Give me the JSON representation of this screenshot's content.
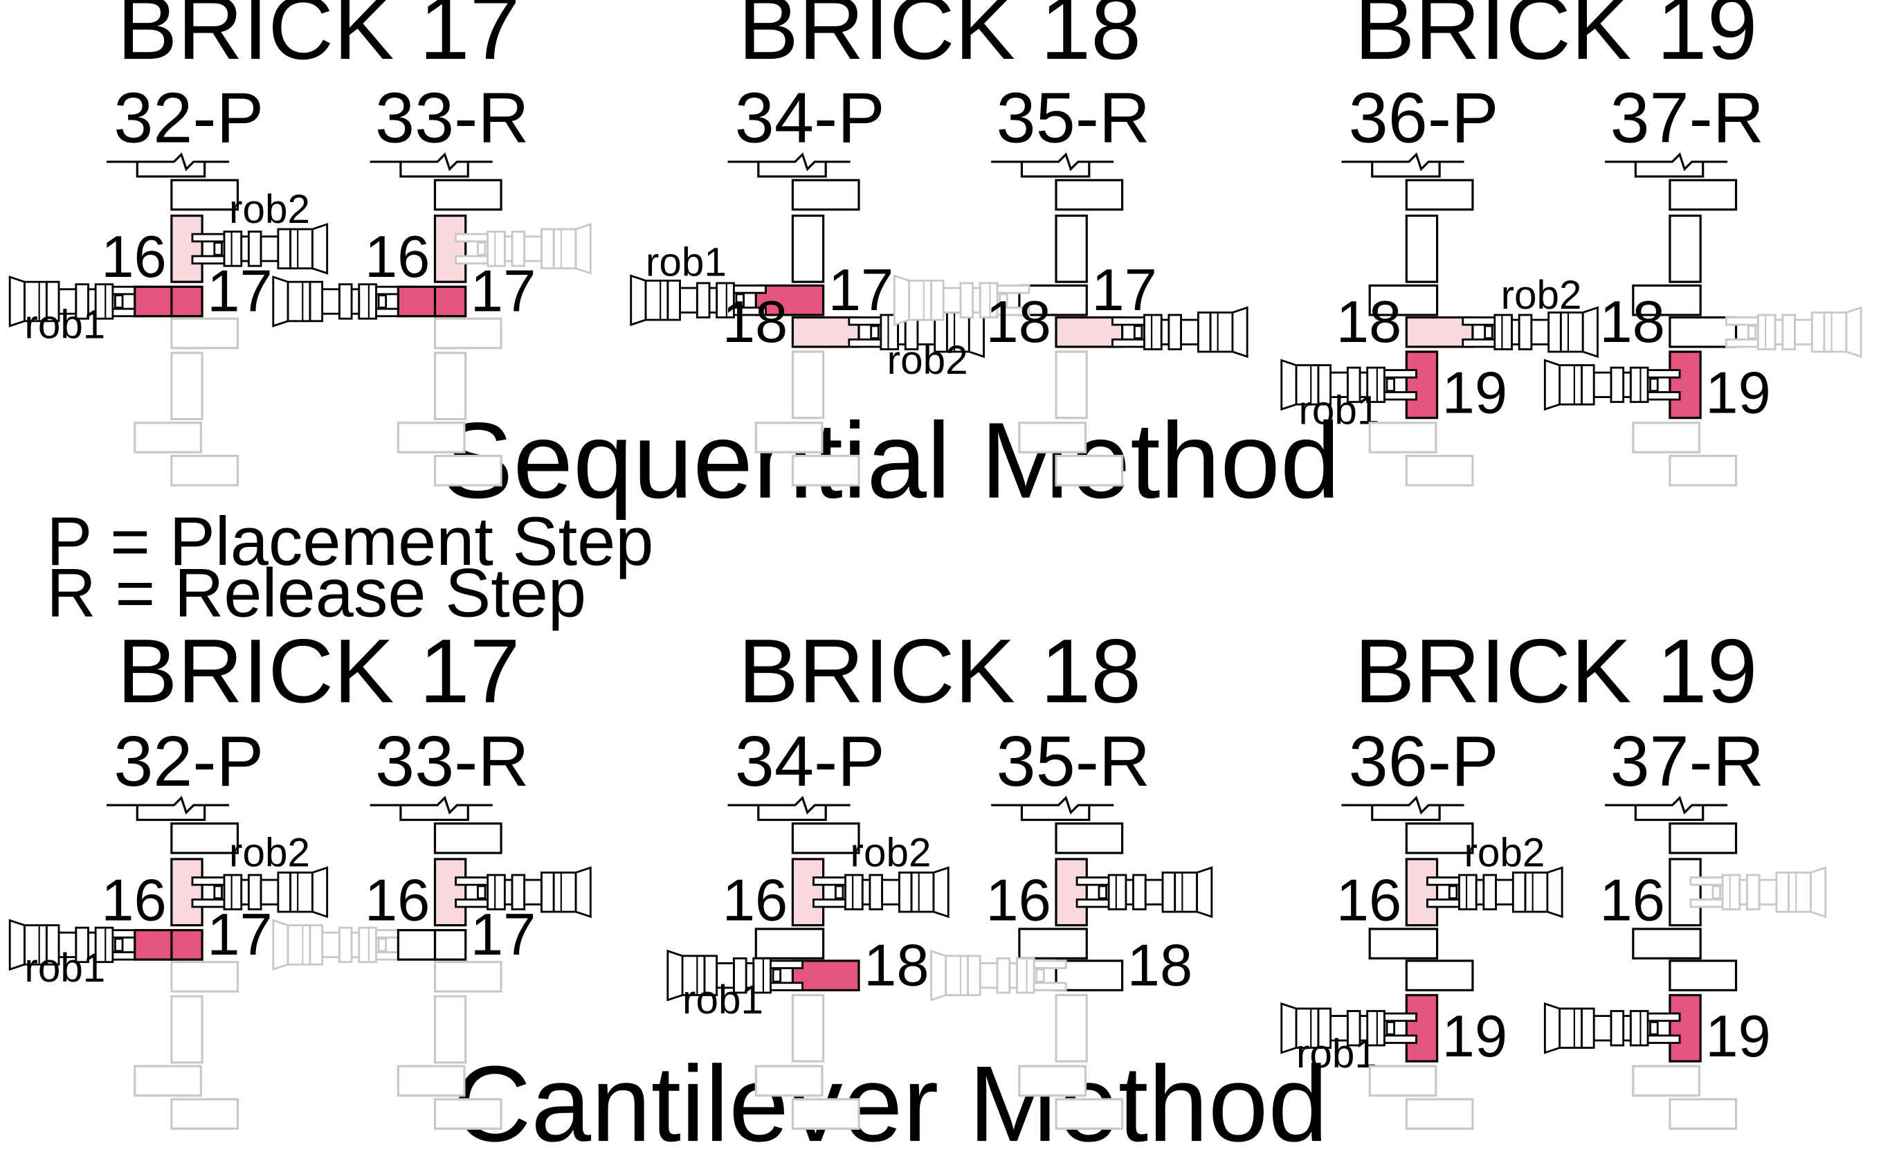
{
  "colors": {
    "active_brick": "#e5547e",
    "held_brick": "#f9d9dd",
    "outline": "#000000",
    "faded": "#c8c8c8"
  },
  "legend": [
    "P = Placement Step",
    "R = Release Step"
  ],
  "sections": [
    {
      "method": "Sequential Method",
      "bricks": [
        {
          "title": "BRICK 17",
          "steps": [
            {
              "label": "32-P",
              "brick_labels": [
                "16",
                "17"
              ],
              "robot_labels": [
                "rob2",
                "rob1"
              ]
            },
            {
              "label": "33-R",
              "brick_labels": [
                "16",
                "17"
              ],
              "robot_labels": []
            }
          ]
        },
        {
          "title": "BRICK 18",
          "steps": [
            {
              "label": "34-P",
              "brick_labels": [
                "17",
                "18"
              ],
              "robot_labels": [
                "rob1",
                "rob2"
              ]
            },
            {
              "label": "35-R",
              "brick_labels": [
                "17",
                "18"
              ],
              "robot_labels": []
            }
          ]
        },
        {
          "title": "BRICK 19",
          "steps": [
            {
              "label": "36-P",
              "brick_labels": [
                "18",
                "19"
              ],
              "robot_labels": [
                "rob2",
                "rob1"
              ]
            },
            {
              "label": "37-R",
              "brick_labels": [
                "18",
                "19"
              ],
              "robot_labels": []
            }
          ]
        }
      ]
    },
    {
      "method": "Cantilever Method",
      "bricks": [
        {
          "title": "BRICK 17",
          "steps": [
            {
              "label": "32-P",
              "brick_labels": [
                "16",
                "17"
              ],
              "robot_labels": [
                "rob2",
                "rob1"
              ]
            },
            {
              "label": "33-R",
              "brick_labels": [
                "16",
                "17"
              ],
              "robot_labels": []
            }
          ]
        },
        {
          "title": "BRICK 18",
          "steps": [
            {
              "label": "34-P",
              "brick_labels": [
                "16",
                "18"
              ],
              "robot_labels": [
                "rob2",
                "rob1"
              ]
            },
            {
              "label": "35-R",
              "brick_labels": [
                "16",
                "18"
              ],
              "robot_labels": []
            }
          ]
        },
        {
          "title": "BRICK 19",
          "steps": [
            {
              "label": "36-P",
              "brick_labels": [
                "16",
                "19"
              ],
              "robot_labels": [
                "rob2",
                "rob1"
              ]
            },
            {
              "label": "37-R",
              "brick_labels": [
                "16",
                "19"
              ],
              "robot_labels": []
            }
          ]
        }
      ]
    }
  ]
}
